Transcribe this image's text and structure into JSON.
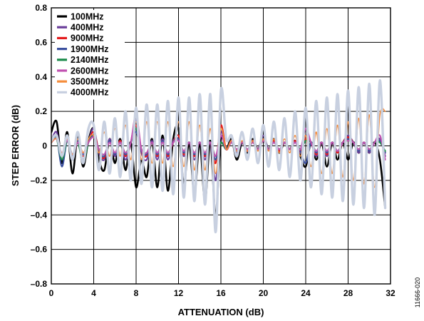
{
  "chart_data": {
    "type": "line",
    "xlabel": "ATTENUATION (dB)",
    "ylabel": "STEP ERROR (dB)",
    "xlim": [
      0,
      32
    ],
    "ylim": [
      -0.8,
      0.8
    ],
    "x_ticks": [
      0,
      4,
      8,
      12,
      16,
      20,
      24,
      28,
      32
    ],
    "y_ticks": [
      -0.8,
      -0.6,
      -0.4,
      -0.2,
      0,
      0.2,
      0.4,
      0.6,
      0.8
    ],
    "x_tick_labels": [
      "0",
      "4",
      "8",
      "12",
      "16",
      "20",
      "24",
      "28",
      "32"
    ],
    "y_tick_labels": [
      "–0.8",
      "–0.6",
      "–0.4",
      "–0.2",
      "0",
      "0.2",
      "0.4",
      "0.6",
      "0.8"
    ],
    "grid": true,
    "legend_position": "top-left",
    "figure_id": "11666-020",
    "x": [
      0,
      0.5,
      1,
      1.5,
      2,
      2.5,
      3,
      3.5,
      4,
      4.5,
      5,
      5.5,
      6,
      6.5,
      7,
      7.5,
      8,
      8.5,
      9,
      9.5,
      10,
      10.5,
      11,
      11.5,
      12,
      12.5,
      13,
      13.5,
      14,
      14.5,
      15,
      15.5,
      16,
      16.5,
      17,
      17.5,
      18,
      18.5,
      19,
      19.5,
      20,
      20.5,
      21,
      21.5,
      22,
      22.5,
      23,
      23.5,
      24,
      24.5,
      25,
      25.5,
      26,
      26.5,
      27,
      27.5,
      28,
      28.5,
      29,
      29.5,
      30,
      30.5,
      31,
      31.5
    ],
    "series": [
      {
        "name": "100MHz",
        "color": "#000000",
        "width": 2.6,
        "values": [
          0.08,
          0.14,
          -0.1,
          0.08,
          -0.16,
          0.06,
          -0.12,
          0.03,
          0.1,
          -0.08,
          -0.14,
          0.04,
          -0.1,
          0.04,
          -0.14,
          0.02,
          -0.24,
          -0.08,
          -0.18,
          0.04,
          -0.24,
          0.06,
          -0.26,
          0.04,
          0.1,
          -0.22,
          0.02,
          -0.28,
          0.02,
          -0.32,
          0.03,
          -0.4,
          0.04,
          -0.02,
          0.04,
          -0.08,
          0.02,
          -0.04,
          0.04,
          -0.02,
          0.06,
          -0.02,
          0.04,
          -0.04,
          0.02,
          -0.02,
          0.03,
          -0.06,
          -0.12,
          0.02,
          -0.08,
          0.02,
          -0.12,
          0.02,
          -0.08,
          0.02,
          -0.08,
          0.02,
          -0.04,
          0.02,
          -0.04,
          0.02,
          -0.08,
          -0.36
        ]
      },
      {
        "name": "400MHz",
        "color": "#6a3d9a",
        "width": 2.2,
        "values": [
          0.03,
          0.08,
          -0.06,
          0.05,
          -0.08,
          0.04,
          -0.08,
          0.02,
          0.1,
          -0.04,
          -0.08,
          0.04,
          -0.06,
          0.03,
          -0.08,
          0.02,
          0.15,
          -0.04,
          -0.08,
          0.03,
          -0.08,
          0.04,
          -0.08,
          0.03,
          0.04,
          -0.06,
          0.02,
          -0.08,
          0.02,
          -0.08,
          0.02,
          -0.2,
          0.08,
          -0.02,
          0.03,
          -0.04,
          0.02,
          -0.03,
          0.03,
          -0.02,
          0.06,
          -0.02,
          0.03,
          -0.03,
          0.02,
          -0.02,
          0.03,
          -0.04,
          0.06,
          0.02,
          -0.06,
          0.02,
          -0.06,
          0.02,
          -0.04,
          0.02,
          0.06,
          0.02,
          -0.04,
          0.02,
          -0.04,
          0.02,
          0.04,
          -0.06
        ]
      },
      {
        "name": "900MHz",
        "color": "#e41a1c",
        "width": 2.2,
        "values": [
          0.02,
          0.06,
          -0.05,
          0.04,
          -0.07,
          0.03,
          -0.06,
          0.02,
          0.08,
          -0.03,
          -0.07,
          0.03,
          -0.05,
          0.03,
          -0.06,
          0.02,
          0.12,
          -0.03,
          -0.06,
          0.02,
          -0.06,
          0.03,
          -0.06,
          0.02,
          0.06,
          -0.05,
          0.02,
          -0.06,
          0.02,
          -0.06,
          0.02,
          -0.1,
          0.12,
          -0.02,
          0.03,
          -0.03,
          0.02,
          -0.03,
          0.03,
          -0.02,
          0.04,
          -0.02,
          0.03,
          -0.03,
          0.02,
          -0.02,
          0.03,
          -0.03,
          0.04,
          0.02,
          -0.05,
          0.02,
          -0.05,
          0.02,
          -0.04,
          0.02,
          0.05,
          0.02,
          -0.03,
          0.02,
          -0.03,
          0.02,
          0.03,
          -0.04
        ]
      },
      {
        "name": "1900MHz",
        "color": "#3a4f9e",
        "width": 2.2,
        "values": [
          0.02,
          0.05,
          -0.12,
          0.03,
          -0.06,
          0.03,
          -0.05,
          0.02,
          0.06,
          -0.03,
          -0.06,
          0.03,
          -0.05,
          0.02,
          -0.05,
          0.02,
          0.08,
          -0.03,
          -0.05,
          0.02,
          -0.05,
          0.03,
          -0.05,
          0.02,
          0.04,
          -0.04,
          0.02,
          -0.05,
          0.02,
          -0.05,
          0.02,
          -0.08,
          0.06,
          -0.02,
          0.02,
          -0.03,
          0.02,
          -0.02,
          0.02,
          -0.02,
          0.04,
          -0.02,
          0.02,
          -0.02,
          0.02,
          -0.02,
          0.02,
          -0.03,
          -0.1,
          0.02,
          -0.04,
          0.02,
          -0.04,
          0.02,
          -0.03,
          0.02,
          0.04,
          0.02,
          -0.03,
          0.02,
          -0.03,
          0.02,
          0.03,
          -0.04
        ]
      },
      {
        "name": "2140MHz",
        "color": "#1a8a4a",
        "width": 2.2,
        "values": [
          0.02,
          0.04,
          -0.08,
          0.03,
          -0.05,
          0.02,
          -0.1,
          0.02,
          0.05,
          -0.02,
          -0.05,
          0.02,
          -0.04,
          0.02,
          -0.04,
          0.02,
          0.1,
          -0.02,
          -0.04,
          0.02,
          -0.04,
          0.02,
          -0.04,
          0.02,
          0.03,
          -0.03,
          0.02,
          -0.04,
          0.02,
          -0.04,
          0.02,
          -0.06,
          0.02,
          -0.02,
          0.02,
          -0.02,
          0.02,
          -0.02,
          0.02,
          -0.02,
          0.03,
          -0.02,
          0.02,
          -0.02,
          0.02,
          -0.02,
          0.02,
          -0.02,
          0.03,
          0.02,
          -0.03,
          0.02,
          -0.03,
          0.02,
          -0.03,
          0.02,
          0.03,
          0.02,
          -0.02,
          0.02,
          -0.02,
          0.02,
          0.02,
          -0.03
        ]
      },
      {
        "name": "2600MHz",
        "color": "#c04fb0",
        "width": 2.2,
        "values": [
          0.02,
          0.04,
          -0.04,
          0.03,
          -0.05,
          0.02,
          -0.04,
          0.02,
          0.05,
          -0.02,
          -0.05,
          0.02,
          -0.04,
          0.02,
          -0.04,
          0.02,
          0.18,
          -0.02,
          -0.04,
          0.02,
          -0.04,
          0.02,
          -0.04,
          0.02,
          0.03,
          -0.03,
          0.02,
          -0.04,
          0.02,
          -0.04,
          0.02,
          -0.06,
          0.06,
          -0.02,
          0.02,
          -0.02,
          0.02,
          -0.02,
          0.02,
          -0.02,
          0.03,
          -0.02,
          0.02,
          -0.02,
          0.02,
          -0.02,
          0.02,
          -0.02,
          0.1,
          0.02,
          -0.03,
          0.02,
          -0.03,
          0.02,
          -0.03,
          0.02,
          0.03,
          0.02,
          -0.02,
          0.02,
          -0.02,
          0.02,
          0.06,
          -0.08
        ]
      },
      {
        "name": "3500MHz",
        "color": "#f58c3a",
        "width": 1.6,
        "values": [
          0.02,
          0.04,
          -0.04,
          0.04,
          -0.05,
          0.04,
          -0.04,
          0.04,
          0.06,
          -0.04,
          0.08,
          -0.06,
          0.1,
          -0.06,
          0.12,
          -0.08,
          0.14,
          -0.08,
          0.14,
          -0.1,
          0.14,
          -0.1,
          0.14,
          -0.12,
          0.14,
          -0.12,
          0.14,
          -0.14,
          0.12,
          -0.14,
          0.1,
          -0.16,
          0.1,
          -0.02,
          0.03,
          -0.03,
          0.03,
          -0.03,
          0.03,
          -0.03,
          0.04,
          -0.03,
          0.04,
          -0.04,
          0.04,
          -0.04,
          0.06,
          -0.06,
          0.06,
          -0.12,
          0.08,
          -0.16,
          0.1,
          -0.16,
          0.12,
          -0.18,
          0.14,
          -0.2,
          0.16,
          -0.22,
          0.18,
          -0.24,
          0.18,
          0.2
        ]
      },
      {
        "name": "4000MHz",
        "color": "#c8d0e0",
        "width": 3.4,
        "values": [
          0.03,
          0.06,
          -0.06,
          0.06,
          -0.08,
          0.08,
          -0.1,
          0.1,
          0.12,
          -0.14,
          0.14,
          -0.16,
          0.16,
          -0.18,
          0.2,
          -0.2,
          0.22,
          -0.22,
          0.24,
          -0.24,
          0.24,
          -0.26,
          0.26,
          -0.28,
          0.28,
          -0.3,
          0.28,
          -0.32,
          0.3,
          -0.34,
          0.3,
          -0.5,
          0.32,
          0.04,
          0.06,
          -0.06,
          0.08,
          -0.08,
          0.1,
          -0.1,
          0.12,
          -0.12,
          0.14,
          -0.14,
          0.16,
          -0.18,
          0.2,
          -0.2,
          0.22,
          -0.24,
          0.26,
          -0.28,
          0.28,
          -0.3,
          0.3,
          -0.32,
          0.32,
          -0.34,
          0.34,
          -0.36,
          0.36,
          -0.4,
          0.38,
          -0.36
        ]
      }
    ]
  }
}
